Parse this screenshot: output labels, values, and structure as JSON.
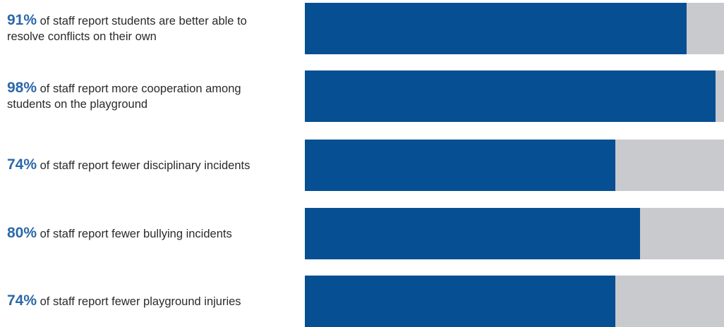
{
  "colors": {
    "bar_fill": "#064f93",
    "bar_track": "#c8cace",
    "percent_text": "#2b68a8",
    "body_text": "#2a2a2a"
  },
  "chart_data": {
    "type": "bar",
    "orientation": "horizontal",
    "xlim": [
      0,
      100
    ],
    "grid": false,
    "categories": [
      "of staff report students are better able to resolve conflicts on their own",
      "of staff report more cooperation among students on the playground",
      "of staff report fewer disciplinary incidents",
      "of staff report fewer bullying incidents",
      "of staff report fewer playground injuries"
    ],
    "values": [
      91,
      98,
      74,
      80,
      74
    ],
    "items": [
      {
        "percent_label": "91%",
        "text": "of staff report students are better able to resolve conflicts on their own",
        "value": 91
      },
      {
        "percent_label": "98%",
        "text": "of staff report more cooperation among students on the playground",
        "value": 98
      },
      {
        "percent_label": "74%",
        "text": "of staff report fewer disciplinary incidents",
        "value": 74
      },
      {
        "percent_label": "80%",
        "text": "of staff report fewer bullying incidents",
        "value": 80
      },
      {
        "percent_label": "74%",
        "text": "of staff report fewer playground injuries",
        "value": 74
      }
    ]
  }
}
